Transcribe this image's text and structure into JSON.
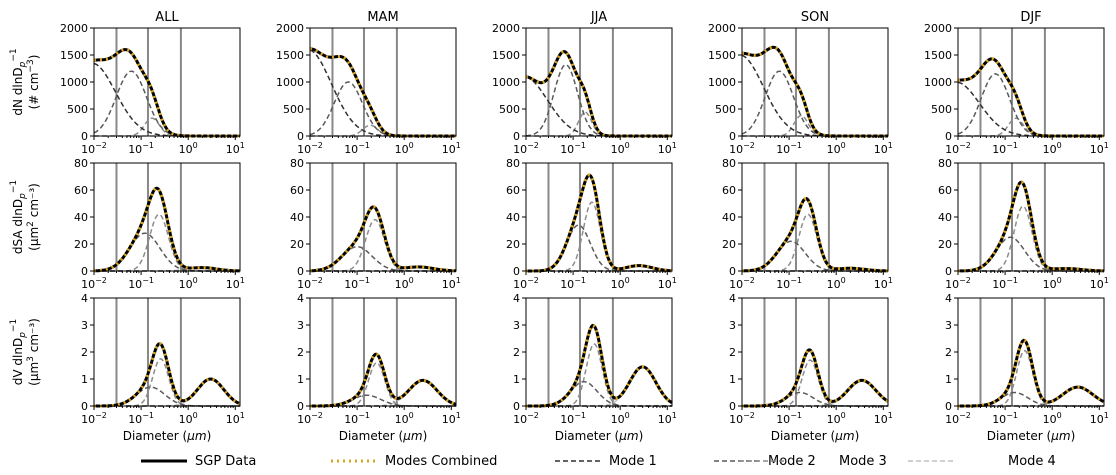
{
  "chart_data": {
    "type": "line",
    "columns": [
      "ALL",
      "MAM",
      "JJA",
      "SON",
      "DJF"
    ],
    "rows": [
      {
        "key": "dN",
        "ylabel_line1": "dN dlnD",
        "ylabel_sub": "p",
        "ylabel_sup": "−1",
        "ylabel_line2": "(# cm",
        "ylabel_line2_sup": "−3",
        "ylabel_line2_end": ")",
        "ylim": [
          0,
          2000
        ],
        "yticks": [
          "0",
          "500",
          "1000",
          "1500",
          "2000"
        ]
      },
      {
        "key": "dSA",
        "ylabel_line1": "dSA dlnD",
        "ylabel_sub": "p",
        "ylabel_sup": "−1",
        "ylabel_line2": "(μm",
        "ylabel_line2_sup": "2",
        "ylabel_line2_end": " cm⁻³)",
        "ylim": [
          0,
          80
        ],
        "yticks": [
          "0",
          "20",
          "40",
          "60",
          "80"
        ]
      },
      {
        "key": "dV",
        "ylabel_line1": "dV dlnD",
        "ylabel_sub": "p",
        "ylabel_sup": "−1",
        "ylabel_line2": "(μm",
        "ylabel_line2_sup": "3",
        "ylabel_line2_end": " cm⁻³)",
        "ylim": [
          0,
          4
        ],
        "yticks": [
          "0",
          "1",
          "2",
          "3",
          "4"
        ]
      }
    ],
    "x_scale": "log",
    "xlim_log10": [
      -2,
      1.1
    ],
    "xticks": [
      {
        "base": "10",
        "exp": "−2",
        "log": -2
      },
      {
        "base": "10",
        "exp": "−1",
        "log": -1
      },
      {
        "base": "10",
        "exp": "0",
        "log": 0
      },
      {
        "base": "10",
        "exp": "1",
        "log": 1
      }
    ],
    "xlabel_text": "Diameter (",
    "xlabel_mu": "μm",
    "xlabel_end": ")",
    "vlines_um": [
      0.03,
      0.14,
      0.7
    ],
    "series_styles": [
      {
        "name": "SGP Data",
        "color": "#000000",
        "width": 3,
        "dash": ""
      },
      {
        "name": "Modes Combined",
        "color": "#DAA520",
        "width": 3,
        "dash": "2,4"
      },
      {
        "name": "Mode 1",
        "color": "#303030",
        "width": 1.5,
        "dash": "5,3"
      },
      {
        "name": "Mode 2",
        "color": "#5a5a5a",
        "width": 1.5,
        "dash": "5,3"
      },
      {
        "name": "Mode 3",
        "color": "#8c8c8c",
        "width": 1.5,
        "dash": "5,3"
      },
      {
        "name": "Mode 4",
        "color": "#c0c0c0",
        "width": 1.5,
        "dash": "5,3"
      }
    ],
    "modes": {
      "ALL": {
        "dN": [
          [
            0.009,
            1350,
            0.5
          ],
          [
            0.062,
            1200,
            0.32
          ],
          [
            0.17,
            330,
            0.16
          ],
          [
            2.0,
            0,
            0.25
          ]
        ],
        "dSA": [
          [
            0.013,
            0,
            0.3
          ],
          [
            0.12,
            28,
            0.32
          ],
          [
            0.24,
            42,
            0.2
          ],
          [
            2.0,
            2.5,
            0.3
          ]
        ],
        "dV": [
          [
            0.02,
            0,
            0.3
          ],
          [
            0.16,
            0.7,
            0.3
          ],
          [
            0.26,
            1.75,
            0.17
          ],
          [
            3.0,
            1.0,
            0.28
          ]
        ]
      },
      "MAM": {
        "dN": [
          [
            0.009,
            1600,
            0.5
          ],
          [
            0.065,
            1000,
            0.3
          ],
          [
            0.19,
            200,
            0.16
          ],
          [
            2.0,
            0,
            0.25
          ]
        ],
        "dSA": [
          [
            0.013,
            0,
            0.3
          ],
          [
            0.1,
            18,
            0.32
          ],
          [
            0.24,
            38,
            0.2
          ],
          [
            2.0,
            3.0,
            0.32
          ]
        ],
        "dV": [
          [
            0.02,
            0,
            0.3
          ],
          [
            0.16,
            0.4,
            0.3
          ],
          [
            0.26,
            1.6,
            0.17
          ],
          [
            2.5,
            0.95,
            0.3
          ]
        ]
      },
      "JJA": {
        "dN": [
          [
            0.009,
            1100,
            0.5
          ],
          [
            0.07,
            1320,
            0.25
          ],
          [
            0.18,
            440,
            0.14
          ],
          [
            2.0,
            0,
            0.25
          ]
        ],
        "dSA": [
          [
            0.013,
            0,
            0.3
          ],
          [
            0.13,
            34,
            0.25
          ],
          [
            0.25,
            51,
            0.18
          ],
          [
            2.5,
            4.0,
            0.28
          ]
        ],
        "dV": [
          [
            0.02,
            0,
            0.3
          ],
          [
            0.17,
            0.9,
            0.28
          ],
          [
            0.28,
            2.3,
            0.17
          ],
          [
            3.0,
            1.45,
            0.28
          ]
        ]
      },
      "SON": {
        "dN": [
          [
            0.009,
            1500,
            0.5
          ],
          [
            0.062,
            1200,
            0.3
          ],
          [
            0.18,
            380,
            0.15
          ],
          [
            2.0,
            0,
            0.25
          ]
        ],
        "dSA": [
          [
            0.013,
            0,
            0.3
          ],
          [
            0.11,
            22,
            0.3
          ],
          [
            0.25,
            42,
            0.19
          ],
          [
            2.0,
            2.0,
            0.3
          ]
        ],
        "dV": [
          [
            0.02,
            0,
            0.3
          ],
          [
            0.17,
            0.5,
            0.28
          ],
          [
            0.28,
            1.7,
            0.17
          ],
          [
            3.5,
            0.95,
            0.3
          ]
        ]
      },
      "DJF": {
        "dN": [
          [
            0.009,
            1000,
            0.5
          ],
          [
            0.062,
            1150,
            0.3
          ],
          [
            0.17,
            330,
            0.16
          ],
          [
            2.0,
            0,
            0.25
          ]
        ],
        "dSA": [
          [
            0.013,
            0,
            0.3
          ],
          [
            0.13,
            25,
            0.3
          ],
          [
            0.24,
            48,
            0.19
          ],
          [
            2.0,
            1.8,
            0.32
          ]
        ],
        "dV": [
          [
            0.02,
            0,
            0.3
          ],
          [
            0.16,
            0.5,
            0.28
          ],
          [
            0.26,
            2.05,
            0.17
          ],
          [
            3.5,
            0.7,
            0.32
          ]
        ]
      }
    }
  }
}
